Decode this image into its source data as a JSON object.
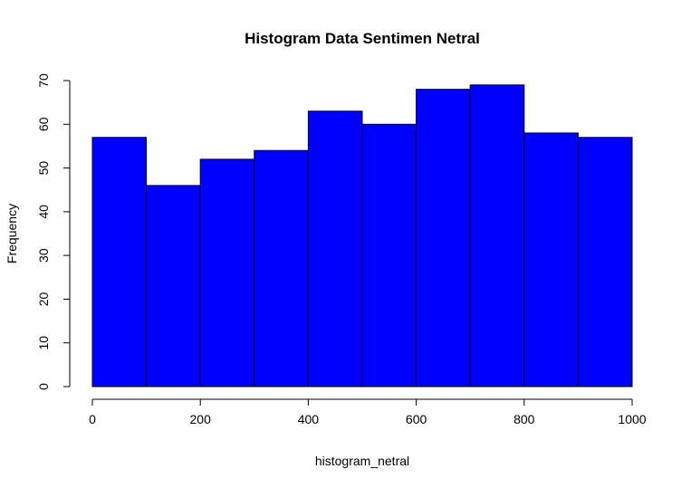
{
  "chart_data": {
    "type": "bar",
    "title": "Histogram Data Sentimen Netral",
    "xlabel": "histogram_netral",
    "ylabel": "Frequency",
    "bin_edges": [
      0,
      100,
      200,
      300,
      400,
      500,
      600,
      700,
      800,
      900,
      1000
    ],
    "values": [
      57,
      46,
      52,
      54,
      63,
      60,
      68,
      69,
      58,
      57
    ],
    "xlim": [
      0,
      1000
    ],
    "ylim": [
      0,
      70
    ],
    "x_ticks": [
      0,
      200,
      400,
      600,
      800,
      1000
    ],
    "y_ticks": [
      0,
      10,
      20,
      30,
      40,
      50,
      60,
      70
    ],
    "bar_color": "#0000ff",
    "bar_border_color": "#000000",
    "grid": false,
    "legend": "none"
  }
}
